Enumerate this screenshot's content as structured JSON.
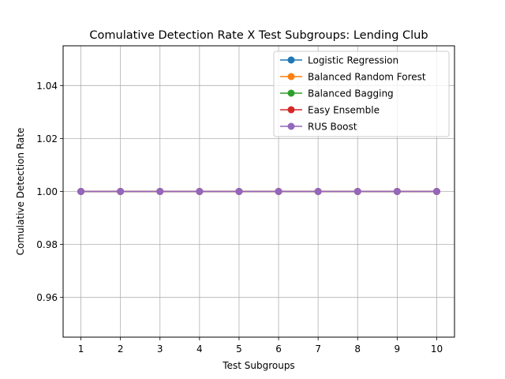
{
  "chart_data": {
    "type": "line",
    "title": "Comulative Detection Rate X Test Subgroups: Lending Club",
    "xlabel": "Test Subgroups",
    "ylabel": "Comulative Detection Rate",
    "x": [
      1,
      2,
      3,
      4,
      5,
      6,
      7,
      8,
      9,
      10
    ],
    "xlim": [
      0.55,
      10.45
    ],
    "ylim": [
      0.945,
      1.055
    ],
    "yticks": [
      0.96,
      0.98,
      1.0,
      1.02,
      1.04
    ],
    "ytick_labels": [
      "0.96",
      "0.98",
      "1.00",
      "1.02",
      "1.04"
    ],
    "xtick_labels": [
      "1",
      "2",
      "3",
      "4",
      "5",
      "6",
      "7",
      "8",
      "9",
      "10"
    ],
    "grid": true,
    "legend_position": "top-right",
    "series": [
      {
        "name": "Logistic Regression",
        "color": "#1f77b4",
        "values": [
          1,
          1,
          1,
          1,
          1,
          1,
          1,
          1,
          1,
          1
        ]
      },
      {
        "name": "Balanced Random Forest",
        "color": "#ff7f0e",
        "values": [
          1,
          1,
          1,
          1,
          1,
          1,
          1,
          1,
          1,
          1
        ]
      },
      {
        "name": "Balanced Bagging",
        "color": "#2ca02c",
        "values": [
          1,
          1,
          1,
          1,
          1,
          1,
          1,
          1,
          1,
          1
        ]
      },
      {
        "name": "Easy Ensemble",
        "color": "#d62728",
        "values": [
          1,
          1,
          1,
          1,
          1,
          1,
          1,
          1,
          1,
          1
        ]
      },
      {
        "name": "RUS Boost",
        "color": "#9467bd",
        "values": [
          1,
          1,
          1,
          1,
          1,
          1,
          1,
          1,
          1,
          1
        ]
      }
    ]
  }
}
